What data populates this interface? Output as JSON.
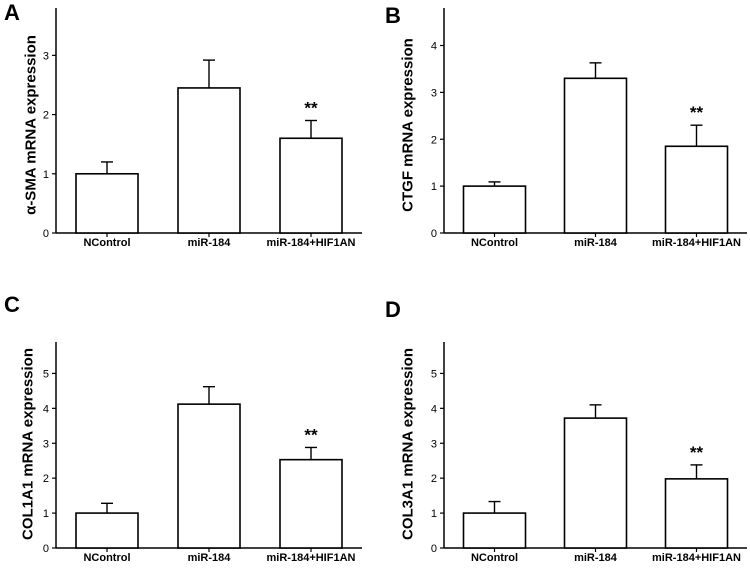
{
  "chart_data": [
    {
      "type": "bar",
      "panel_letter": "A",
      "title": "",
      "xlabel": "",
      "ylabel": "α-SMA mRNA expression",
      "categories": [
        "NControl",
        "miR-184",
        "miR-184+HIF1AN"
      ],
      "values": [
        1.0,
        2.45,
        1.6
      ],
      "errors": [
        0.2,
        0.47,
        0.3
      ],
      "annotations": [
        "",
        "",
        "**"
      ],
      "ylim": [
        0,
        3.8
      ],
      "yticks": [
        0,
        1,
        2,
        3
      ],
      "grid": false,
      "bar_color": "#ffffff",
      "edge_color": "#000000"
    },
    {
      "type": "bar",
      "panel_letter": "B",
      "title": "",
      "xlabel": "",
      "ylabel": "CTGF mRNA expression",
      "categories": [
        "NControl",
        "miR-184",
        "miR-184+HIF1AN"
      ],
      "values": [
        1.0,
        3.3,
        1.85
      ],
      "errors": [
        0.09,
        0.33,
        0.45
      ],
      "annotations": [
        "",
        "",
        "**"
      ],
      "ylim": [
        0,
        4.8
      ],
      "yticks": [
        0,
        1,
        2,
        3,
        4
      ],
      "grid": false,
      "bar_color": "#ffffff",
      "edge_color": "#000000"
    },
    {
      "type": "bar",
      "panel_letter": "C",
      "title": "",
      "xlabel": "",
      "ylabel": "COL1A1 mRNA expression",
      "categories": [
        "NControl",
        "miR-184",
        "miR-184+HIF1AN"
      ],
      "values": [
        1.0,
        4.12,
        2.53
      ],
      "errors": [
        0.28,
        0.5,
        0.35
      ],
      "annotations": [
        "",
        "",
        "**"
      ],
      "ylim": [
        0,
        5.9
      ],
      "yticks": [
        0,
        1,
        2,
        3,
        4,
        5
      ],
      "grid": false,
      "bar_color": "#ffffff",
      "edge_color": "#000000"
    },
    {
      "type": "bar",
      "panel_letter": "D",
      "title": "",
      "xlabel": "",
      "ylabel": "COL3A1 mRNA expression",
      "categories": [
        "NControl",
        "miR-184",
        "miR-184+HIF1AN"
      ],
      "values": [
        1.0,
        3.72,
        1.98
      ],
      "errors": [
        0.33,
        0.38,
        0.4
      ],
      "annotations": [
        "",
        "",
        "**"
      ],
      "ylim": [
        0,
        5.9
      ],
      "yticks": [
        0,
        1,
        2,
        3,
        4,
        5
      ],
      "grid": false,
      "bar_color": "#ffffff",
      "edge_color": "#000000"
    }
  ]
}
